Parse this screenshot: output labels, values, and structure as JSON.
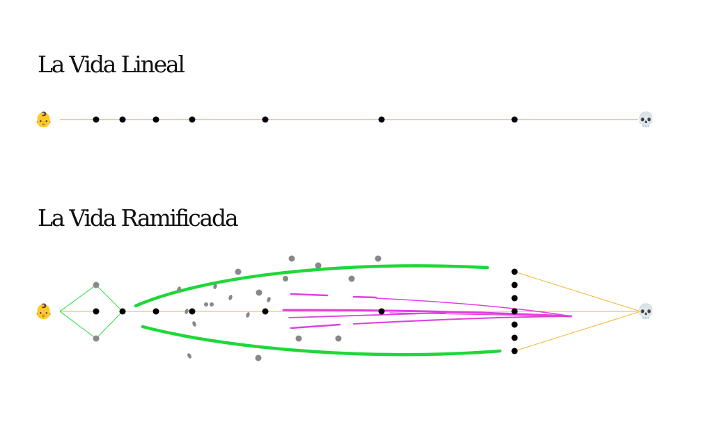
{
  "linear": {
    "title": "La Vida Lineal",
    "start_icon": "baby-face-icon",
    "end_icon": "skull-icon"
  },
  "branched": {
    "title": "La Vida Ramificada",
    "start_icon": "baby-face-icon",
    "end_icon": "skull-icon"
  },
  "colors": {
    "timeline": "#f2b530",
    "milestone": "#000000",
    "scatter": "#888888",
    "branch_green": "#1ed838",
    "thin_green": "#3ee050",
    "magenta": "#e040e0"
  },
  "glyphs": {
    "baby": "👶",
    "skull": "💀"
  }
}
